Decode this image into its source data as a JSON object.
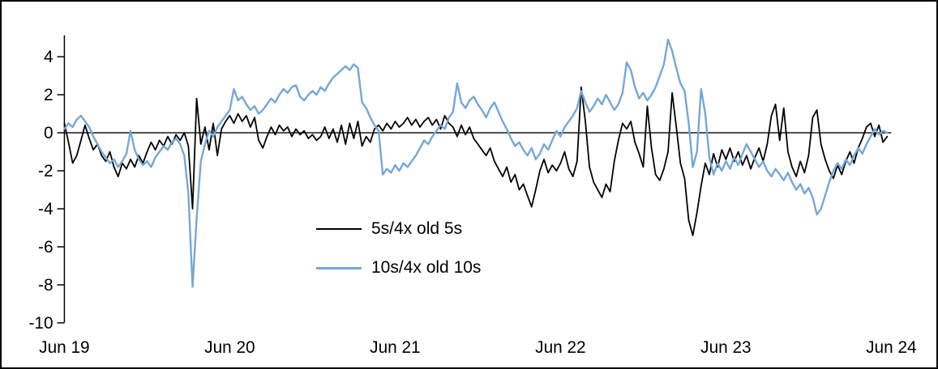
{
  "chart_data": {
    "type": "line",
    "title": "",
    "xlabel": "",
    "ylabel": "",
    "grid": false,
    "legend_position": "inside-lower-center",
    "x_tick_labels": [
      "Jun 19",
      "Jun 20",
      "Jun 21",
      "Jun 22",
      "Jun 23",
      "Jun 24"
    ],
    "y_ticks": [
      4,
      2,
      0,
      -2,
      -4,
      -6,
      -8,
      -10
    ],
    "ylim": [
      -10,
      5.1
    ],
    "xlim_days": [
      0,
      5
    ],
    "x_start": 0,
    "x_step": 0.025,
    "axis_color": "#000000",
    "legend": [
      {
        "label": "5s/4x old 5s",
        "color": "#000000"
      },
      {
        "label": "10s/4x old 10s",
        "color": "#74a7d8"
      }
    ],
    "series": [
      {
        "name": "5s/4x old 5s",
        "color": "#000000",
        "width": 1.8,
        "values": [
          0.5,
          -0.5,
          -1.6,
          -1.2,
          -0.4,
          0.4,
          -0.3,
          -0.9,
          -0.6,
          -1.2,
          -1.5,
          -1.0,
          -1.8,
          -2.3,
          -1.6,
          -1.9,
          -1.4,
          -1.8,
          -1.2,
          -1.6,
          -1.0,
          -0.5,
          -0.9,
          -0.4,
          -0.7,
          -0.2,
          -0.6,
          -0.1,
          -0.4,
          0.0,
          -0.7,
          -4.0,
          1.8,
          -0.6,
          0.3,
          -0.9,
          0.5,
          -1.2,
          0.2,
          0.6,
          0.9,
          0.5,
          1.0,
          0.6,
          0.9,
          0.3,
          0.8,
          -0.4,
          -0.8,
          -0.2,
          0.3,
          -0.1,
          0.4,
          0.1,
          0.3,
          -0.2,
          0.2,
          -0.1,
          0.1,
          -0.3,
          -0.1,
          -0.4,
          -0.2,
          0.3,
          -0.3,
          0.2,
          -0.5,
          0.4,
          -0.6,
          0.5,
          -0.3,
          0.6,
          -0.7,
          -0.2,
          -0.5,
          0.2,
          0.4,
          0.1,
          0.5,
          0.2,
          0.6,
          0.3,
          0.5,
          0.8,
          0.4,
          0.7,
          0.3,
          0.6,
          0.8,
          0.4,
          0.7,
          0.2,
          0.9,
          0.5,
          0.3,
          -0.2,
          0.4,
          -0.1,
          0.3,
          -0.3,
          -0.6,
          -0.9,
          -1.2,
          -0.8,
          -1.5,
          -1.9,
          -2.3,
          -1.8,
          -2.6,
          -2.2,
          -3.0,
          -2.7,
          -3.3,
          -3.9,
          -3.0,
          -2.0,
          -1.4,
          -2.1,
          -1.7,
          -2.0,
          -1.6,
          -1.0,
          -1.9,
          -2.3,
          -1.5,
          2.4,
          0.6,
          -1.8,
          -2.6,
          -3.0,
          -3.4,
          -2.7,
          -3.1,
          -1.5,
          -0.4,
          0.5,
          0.2,
          0.6,
          -0.5,
          -1.1,
          -1.8,
          1.4,
          -0.8,
          -2.2,
          -2.5,
          -1.9,
          -1.0,
          2.1,
          0.3,
          -1.6,
          -2.4,
          -4.6,
          -5.4,
          -4.2,
          -2.8,
          -1.6,
          -2.2,
          -1.1,
          -1.8,
          -0.9,
          -1.4,
          -0.8,
          -1.5,
          -1.0,
          -1.7,
          -1.2,
          -1.9,
          -1.3,
          -0.8,
          -1.5,
          -0.6,
          0.9,
          1.5,
          -0.4,
          1.3,
          -1.0,
          -1.8,
          -2.3,
          -1.5,
          -2.1,
          -1.2,
          0.8,
          1.2,
          -0.6,
          -1.4,
          -2.0,
          -2.4,
          -1.7,
          -2.2,
          -1.5,
          -1.0,
          -1.6,
          -0.8,
          -0.3,
          0.3,
          0.5,
          -0.2,
          0.4,
          -0.5,
          -0.2
        ]
      },
      {
        "name": "10s/4x old 10s",
        "color": "#74a7d8",
        "width": 2.4,
        "values": [
          0.2,
          0.5,
          0.3,
          0.7,
          0.9,
          0.6,
          0.3,
          -0.2,
          -0.6,
          -1.0,
          -1.3,
          -1.6,
          -1.4,
          -1.8,
          -1.5,
          -1.1,
          0.1,
          -0.9,
          -1.4,
          -1.7,
          -1.5,
          -1.8,
          -1.3,
          -1.0,
          -0.7,
          -0.9,
          -0.5,
          -0.3,
          -0.6,
          -1.2,
          -3.2,
          -8.1,
          -4.5,
          -1.5,
          -0.6,
          0.1,
          -0.2,
          0.3,
          0.6,
          0.9,
          1.2,
          2.3,
          1.7,
          1.9,
          1.5,
          1.2,
          1.4,
          1.0,
          1.2,
          1.5,
          1.8,
          1.6,
          2.0,
          2.3,
          2.1,
          2.4,
          2.5,
          1.9,
          1.7,
          2.0,
          2.2,
          2.0,
          2.4,
          2.2,
          2.6,
          2.9,
          3.1,
          3.3,
          3.5,
          3.3,
          3.6,
          3.4,
          1.6,
          1.3,
          0.8,
          0.4,
          0.1,
          -2.2,
          -1.9,
          -2.1,
          -1.7,
          -2.0,
          -1.6,
          -1.8,
          -1.5,
          -1.2,
          -0.8,
          -0.4,
          -0.6,
          -0.2,
          0.1,
          0.4,
          0.2,
          0.8,
          1.1,
          2.6,
          1.6,
          1.3,
          1.7,
          1.9,
          1.5,
          1.2,
          0.8,
          1.3,
          1.6,
          1.1,
          0.6,
          0.2,
          -0.3,
          -0.7,
          -0.5,
          -0.9,
          -1.2,
          -0.8,
          -1.4,
          -1.1,
          -0.6,
          -0.9,
          -0.4,
          0.1,
          -0.2,
          0.3,
          0.6,
          0.9,
          1.3,
          2.2,
          1.6,
          1.1,
          1.4,
          1.8,
          1.5,
          2.0,
          1.6,
          1.2,
          1.5,
          2.1,
          3.7,
          3.3,
          2.4,
          1.8,
          2.1,
          1.7,
          2.0,
          2.4,
          3.0,
          3.6,
          4.9,
          4.3,
          3.4,
          2.6,
          2.2,
          0.5,
          -1.8,
          -1.0,
          2.3,
          1.0,
          -1.3,
          -2.2,
          -1.6,
          -2.0,
          -1.5,
          -1.9,
          -1.3,
          -1.7,
          -1.1,
          -0.6,
          -1.0,
          -1.4,
          -1.8,
          -1.5,
          -2.0,
          -2.3,
          -1.9,
          -2.2,
          -2.5,
          -2.1,
          -2.6,
          -3.0,
          -2.7,
          -3.2,
          -2.9,
          -3.4,
          -4.3,
          -4.0,
          -3.3,
          -2.6,
          -2.0,
          -1.6,
          -1.9,
          -1.4,
          -1.7,
          -1.2,
          -0.8,
          -1.1,
          -0.6,
          -0.2,
          0.2,
          -0.1,
          0.1,
          0.0
        ]
      }
    ]
  }
}
